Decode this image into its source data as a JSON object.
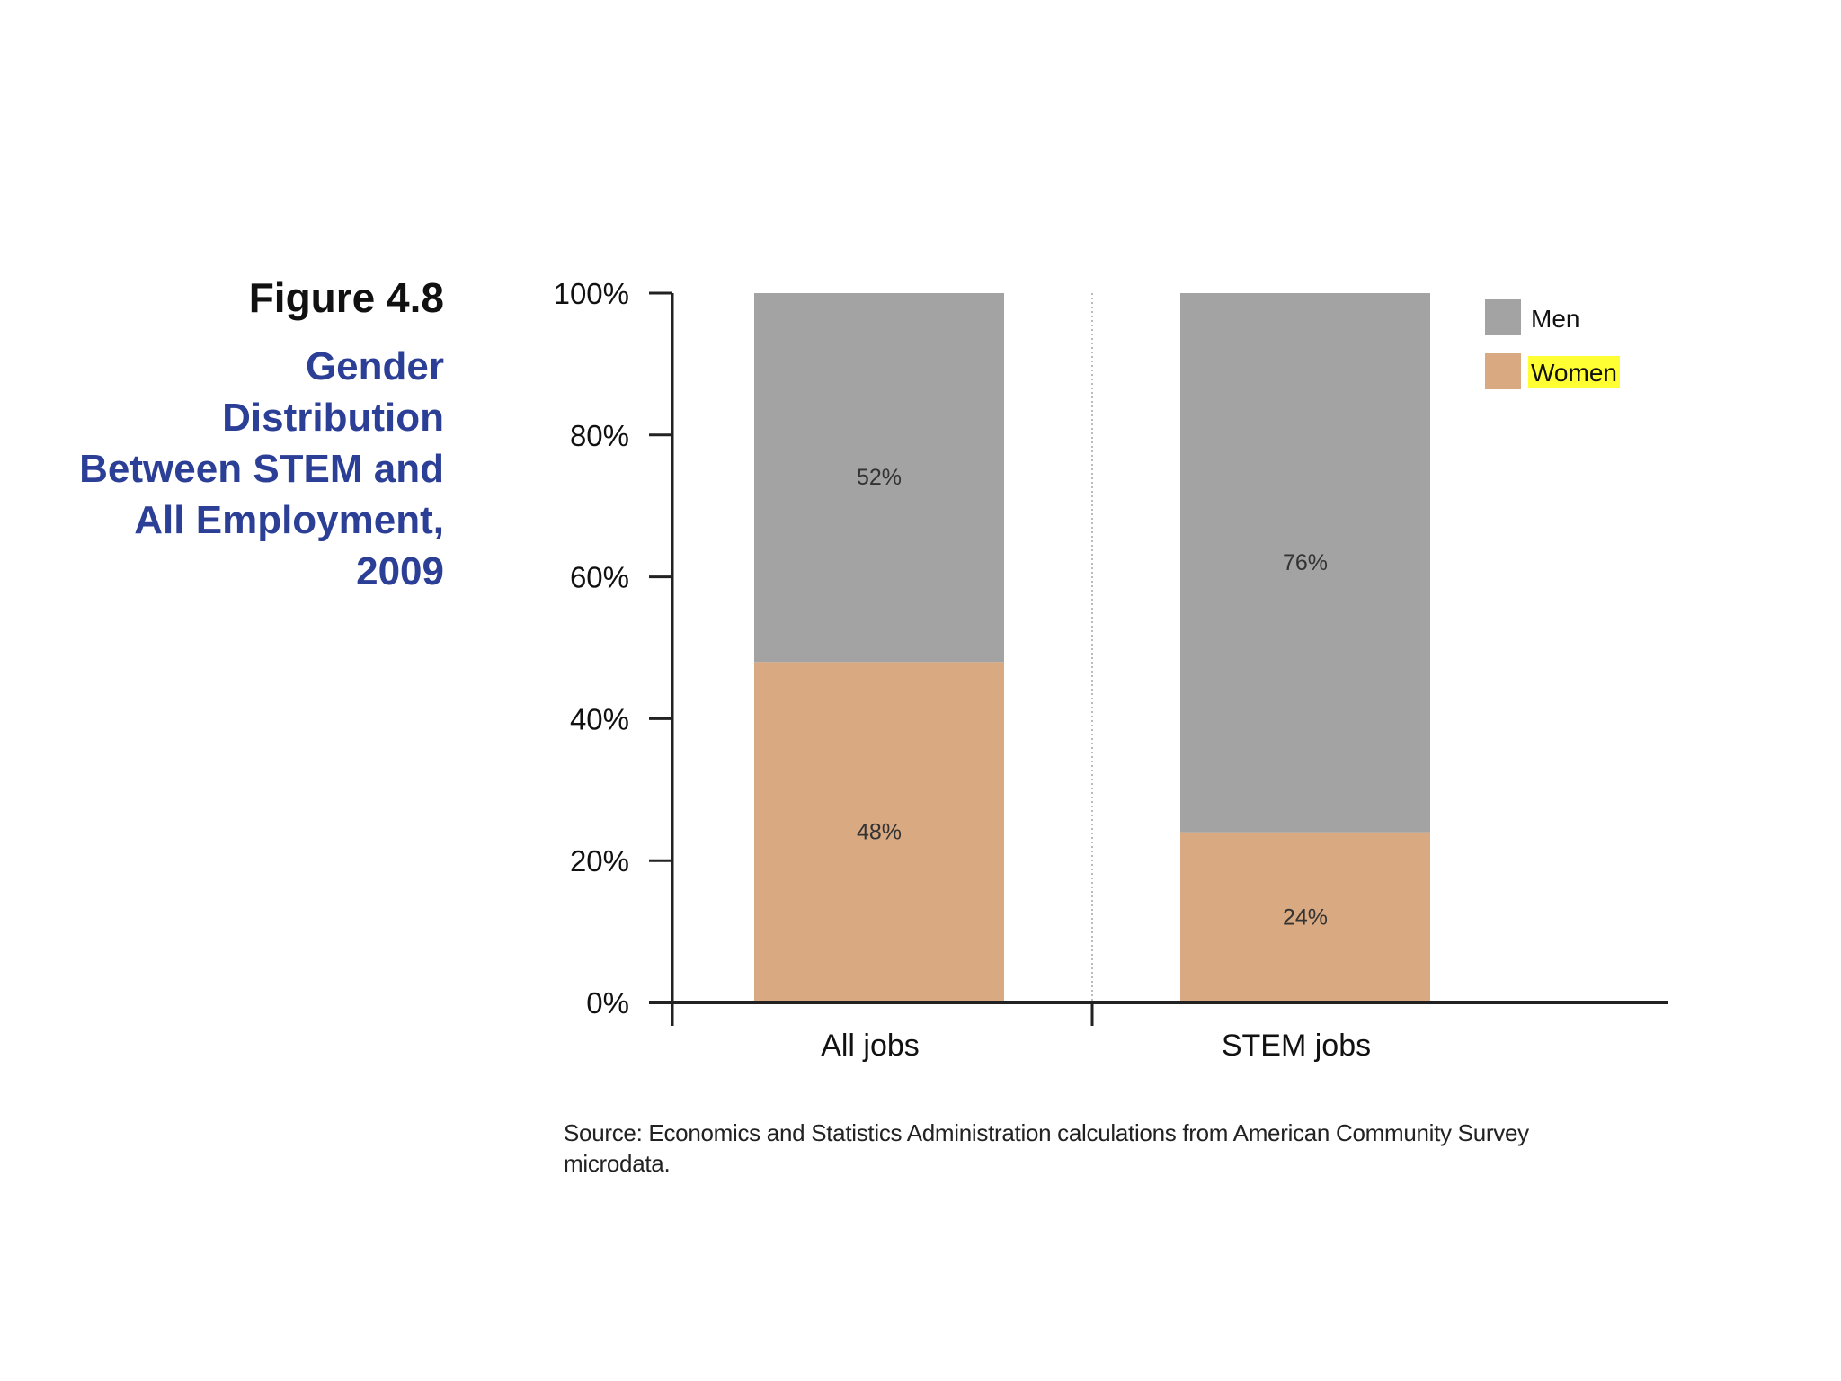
{
  "figure": {
    "number": "Figure 4.8",
    "title_lines": [
      "Gender",
      "Distribution",
      "Between STEM and",
      "All Employment,",
      "2009"
    ]
  },
  "source": {
    "line1": "Source: Economics and Statistics Administration calculations from American Community Survey",
    "line2": "microdata."
  },
  "colors": {
    "men": "#a3a3a3",
    "women": "#d9a982",
    "axis": "#222222",
    "title": "#2c3f96",
    "highlight": "#ffff33"
  },
  "chart_data": {
    "type": "bar",
    "stacked": true,
    "categories": [
      "All jobs",
      "STEM jobs"
    ],
    "series": [
      {
        "name": "Women",
        "values": [
          48,
          24
        ],
        "labels": [
          "48%",
          "24%"
        ]
      },
      {
        "name": "Men",
        "values": [
          52,
          76
        ],
        "labels": [
          "52%",
          "76%"
        ]
      }
    ],
    "legend": [
      {
        "name": "Men",
        "highlighted": false
      },
      {
        "name": "Women",
        "highlighted": true
      }
    ],
    "ylim": [
      0,
      100
    ],
    "yticks": [
      0,
      20,
      40,
      60,
      80,
      100
    ],
    "ytick_labels": [
      "0%",
      "20%",
      "40%",
      "60%",
      "80%",
      "100%"
    ],
    "legend_position": "top-right",
    "grid": false
  }
}
